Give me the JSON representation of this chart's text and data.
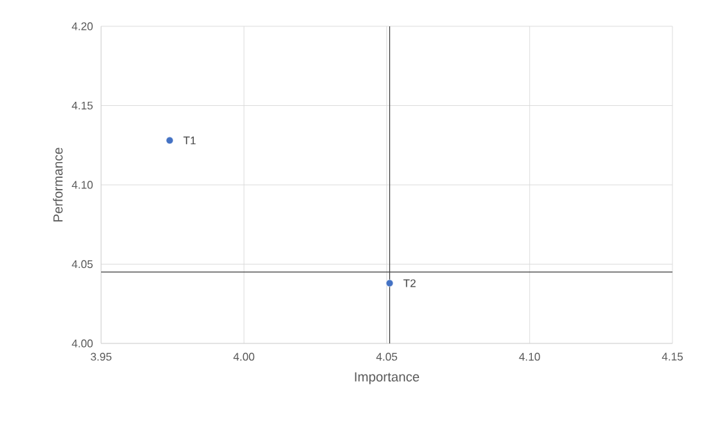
{
  "chart_data": {
    "type": "scatter",
    "xlabel": "Importance",
    "ylabel": "Performance",
    "x": [
      3.974,
      4.051
    ],
    "values": [
      4.128,
      4.038
    ],
    "color": "#4472c4",
    "marker": "circle",
    "grid": true,
    "xlim": [
      3.95,
      4.15
    ],
    "ylim": [
      4.0,
      4.2
    ],
    "xticks": [
      {
        "value": 3.95,
        "label": "3.95"
      },
      {
        "value": 4.0,
        "label": "4.00"
      },
      {
        "value": 4.05,
        "label": "4.05"
      },
      {
        "value": 4.1,
        "label": "4.10"
      },
      {
        "value": 4.15,
        "label": "4.15"
      }
    ],
    "yticks": [
      {
        "value": 4.0,
        "label": "4.00"
      },
      {
        "value": 4.05,
        "label": "4.05"
      },
      {
        "value": 4.1,
        "label": "4.10"
      },
      {
        "value": 4.15,
        "label": "4.15"
      },
      {
        "value": 4.2,
        "label": "4.20"
      }
    ],
    "ref_lines": [
      {
        "axis": "x",
        "value": 4.051,
        "color": "#404040"
      },
      {
        "axis": "y",
        "value": 4.045,
        "color": "#404040"
      }
    ],
    "annotations": [
      {
        "text": "T1",
        "x": 3.974,
        "y": 4.128
      },
      {
        "text": "T2",
        "x": 4.051,
        "y": 4.038
      }
    ]
  }
}
